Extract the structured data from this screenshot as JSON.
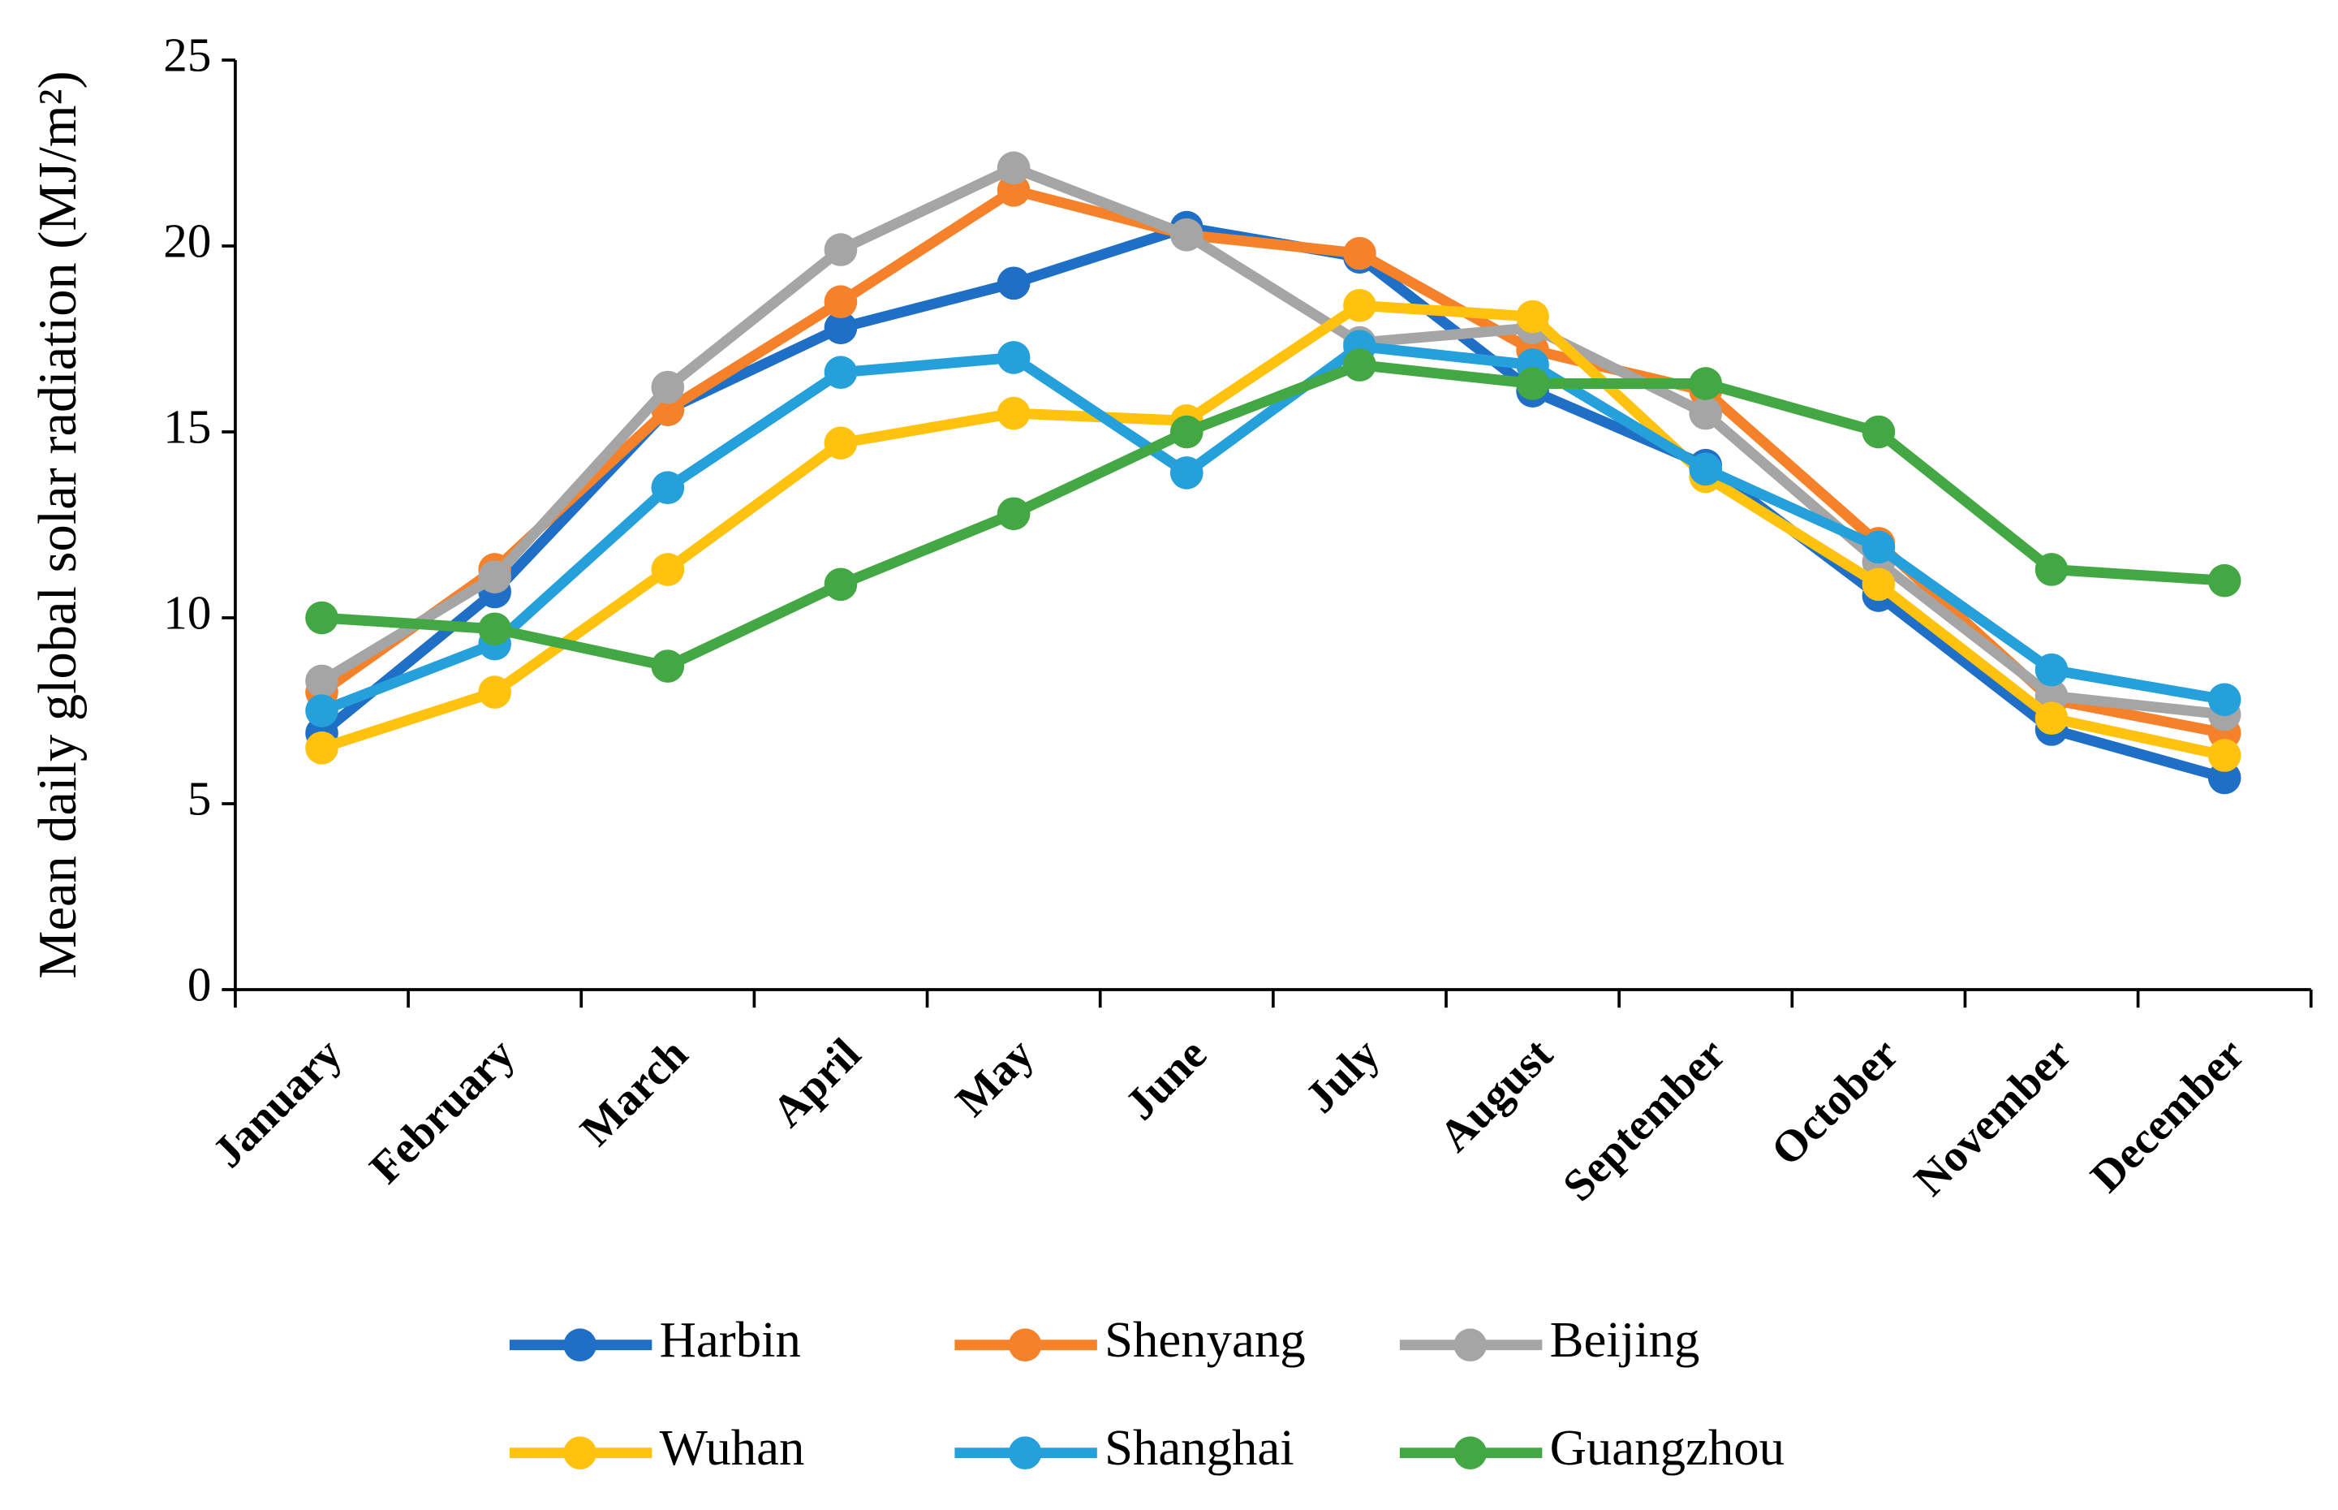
{
  "chart_data": {
    "type": "line",
    "y_label": "Mean daily global solar radiation (MJ/m²)",
    "categories": [
      "January",
      "February",
      "March",
      "April",
      "May",
      "June",
      "July",
      "August",
      "September",
      "October",
      "November",
      "December"
    ],
    "series": [
      {
        "name": "Harbin",
        "color": "#1f6fc6",
        "values": [
          6.9,
          10.7,
          15.6,
          17.8,
          19.0,
          20.5,
          19.7,
          16.1,
          14.1,
          10.6,
          7.0,
          5.7
        ]
      },
      {
        "name": "Shenyang",
        "color": "#f5822a",
        "values": [
          8.0,
          11.3,
          15.6,
          18.5,
          21.5,
          20.3,
          19.8,
          17.2,
          16.1,
          12.0,
          7.8,
          6.9
        ]
      },
      {
        "name": "Beijing",
        "color": "#a5a5a5",
        "values": [
          8.3,
          11.1,
          16.2,
          19.9,
          22.1,
          20.3,
          17.4,
          17.8,
          15.5,
          11.5,
          7.9,
          7.4
        ]
      },
      {
        "name": "Wuhan",
        "color": "#ffc20e",
        "values": [
          6.5,
          8.0,
          11.3,
          14.7,
          15.5,
          15.3,
          18.4,
          18.1,
          13.8,
          10.9,
          7.3,
          6.3
        ]
      },
      {
        "name": "Shanghai",
        "color": "#26a0da",
        "values": [
          7.5,
          9.3,
          13.5,
          16.6,
          17.0,
          13.9,
          17.3,
          16.8,
          14.0,
          11.9,
          8.6,
          7.8
        ]
      },
      {
        "name": "Guangzhou",
        "color": "#43a843",
        "values": [
          10.0,
          9.7,
          8.7,
          10.9,
          12.8,
          15.0,
          16.8,
          16.3,
          16.3,
          15.0,
          11.3,
          11.0
        ]
      }
    ],
    "ylim": [
      0,
      25
    ],
    "yticks": [
      0,
      5,
      10,
      15,
      20,
      25
    ],
    "grid": false
  }
}
